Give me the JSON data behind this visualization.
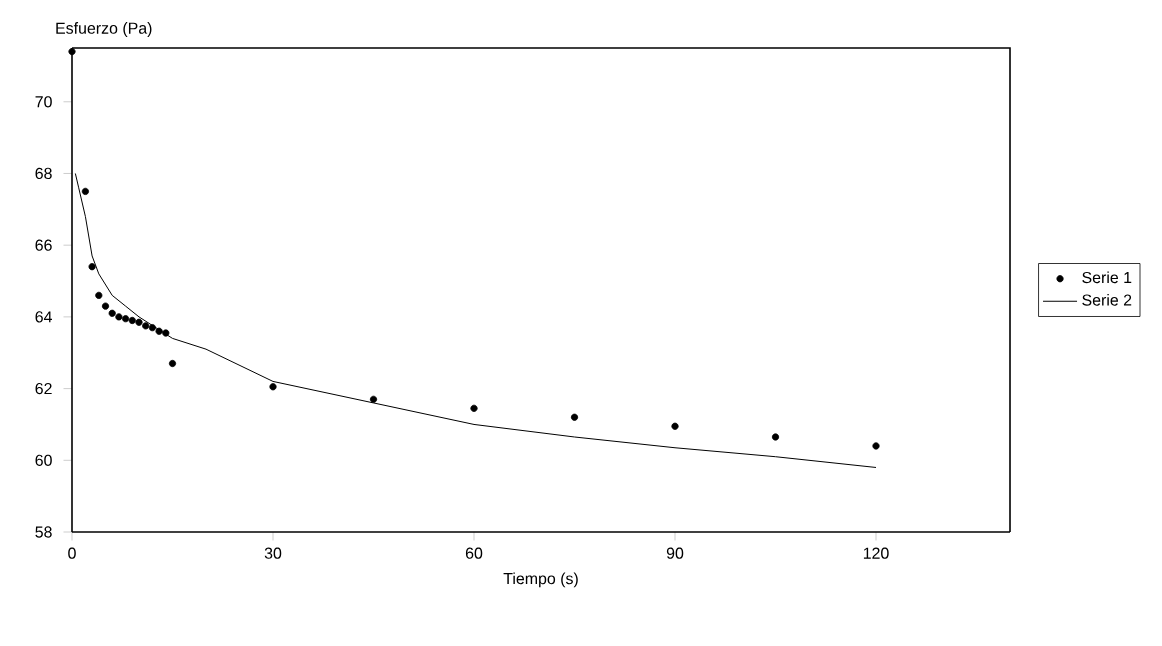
{
  "chart_data": {
    "type": "scatter",
    "ylabel": "Esfuerzo (Pa)",
    "xlabel": "Tiempo (s)",
    "xlim": [
      0,
      140
    ],
    "ylim": [
      58,
      71.5
    ],
    "xticks": [
      0,
      30,
      60,
      90,
      120
    ],
    "yticks": [
      58,
      60,
      62,
      64,
      66,
      68,
      70
    ],
    "grid": false,
    "legend": "right",
    "series": [
      {
        "name": "Serie 1",
        "marker": "circle",
        "color": "#000000",
        "x": [
          0,
          2,
          3,
          4,
          5,
          6,
          7,
          8,
          9,
          10,
          11,
          12,
          13,
          14,
          15,
          30,
          45,
          60,
          75,
          90,
          105,
          120
        ],
        "values": [
          71.4,
          67.5,
          65.4,
          64.6,
          64.3,
          64.1,
          64.0,
          63.95,
          63.9,
          63.85,
          63.75,
          63.7,
          63.6,
          63.55,
          62.7,
          62.05,
          61.7,
          61.45,
          61.2,
          60.95,
          60.65,
          60.4
        ]
      },
      {
        "name": "Serie 2",
        "type": "line",
        "marker": "none",
        "line_style": "solid",
        "color": "#000000",
        "x": [
          0.5,
          1,
          2,
          3,
          4,
          6,
          8,
          10,
          15,
          20,
          30,
          45,
          60,
          75,
          90,
          105,
          120
        ],
        "values": [
          68.0,
          67.6,
          66.8,
          65.7,
          65.2,
          64.6,
          64.3,
          64.0,
          63.4,
          63.1,
          62.2,
          61.6,
          61.0,
          60.65,
          60.35,
          60.1,
          59.8
        ]
      }
    ]
  }
}
